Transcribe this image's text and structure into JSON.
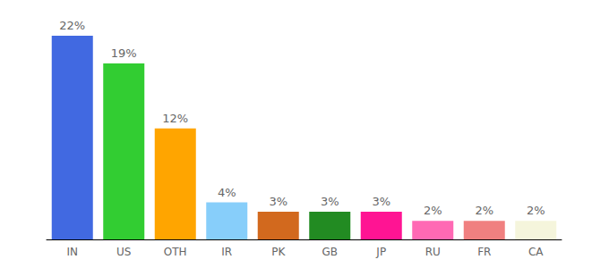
{
  "chart_data": {
    "type": "bar",
    "categories": [
      "IN",
      "US",
      "OTH",
      "IR",
      "PK",
      "GB",
      "JP",
      "RU",
      "FR",
      "CA"
    ],
    "values": [
      22,
      19,
      12,
      4,
      3,
      3,
      3,
      2,
      2,
      2
    ],
    "value_labels": [
      "22%",
      "19%",
      "12%",
      "4%",
      "3%",
      "3%",
      "3%",
      "2%",
      "2%",
      "2%"
    ],
    "colors": [
      "#4169e1",
      "#32cd32",
      "#ffa500",
      "#87cefa",
      "#d2691e",
      "#228b22",
      "#ff1493",
      "#ff69b4",
      "#f08080",
      "#f5f5dc"
    ],
    "data_labels": true,
    "tick_labels": "x",
    "grid": false
  }
}
